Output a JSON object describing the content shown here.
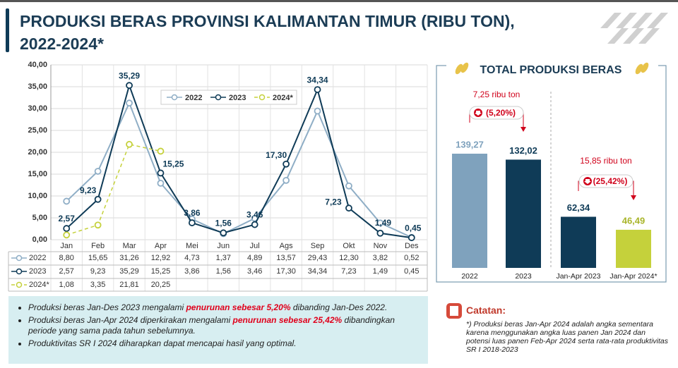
{
  "header": {
    "title_lines": [
      "PRODUKSI BERAS PROVINSI KALIMANTAN TIMUR (RIBU TON),",
      "2022-2024*"
    ]
  },
  "chart_data": [
    {
      "type": "line",
      "categories": [
        "Jan",
        "Feb",
        "Mar",
        "Apr",
        "Mei",
        "Jun",
        "Jul",
        "Ags",
        "Sep",
        "Okt",
        "Nov",
        "Des"
      ],
      "series": [
        {
          "name": "2022",
          "color": "#8faec6",
          "dashed": false,
          "values": [
            8.8,
            15.65,
            31.26,
            12.92,
            4.73,
            1.37,
            4.89,
            13.57,
            29.43,
            12.3,
            3.82,
            0.52
          ],
          "value_labels": [
            "8,80",
            "15,65",
            "31,26",
            "12,92",
            "4,73",
            "1,37",
            "4,89",
            "13,57",
            "29,43",
            "12,30",
            "3,82",
            "0,52"
          ]
        },
        {
          "name": "2023",
          "color": "#0f3b57",
          "dashed": false,
          "labels_on_chart": true,
          "values": [
            2.57,
            9.23,
            35.29,
            15.25,
            3.86,
            1.56,
            3.46,
            17.3,
            34.34,
            7.23,
            1.49,
            0.45
          ],
          "value_labels": [
            "2,57",
            "9,23",
            "35,29",
            "15,25",
            "3,86",
            "1,56",
            "3,46",
            "17,30",
            "34,34",
            "7,23",
            "1,49",
            "0,45"
          ]
        },
        {
          "name": "2024*",
          "color": "#c5d13b",
          "dashed": true,
          "values": [
            1.08,
            3.35,
            21.81,
            20.25,
            null,
            null,
            null,
            null,
            null,
            null,
            null,
            null
          ],
          "value_labels": [
            "1,08",
            "3,35",
            "21,81",
            "20,25",
            null,
            null,
            null,
            null,
            null,
            null,
            null,
            null
          ]
        }
      ],
      "ylim": [
        0,
        40
      ],
      "yticks": [
        {
          "value": 0,
          "label": "0,00"
        },
        {
          "value": 5,
          "label": "5,00"
        },
        {
          "value": 10,
          "label": "10,00"
        },
        {
          "value": 15,
          "label": "15,00"
        },
        {
          "value": 20,
          "label": "20,00"
        },
        {
          "value": 25,
          "label": "25,00"
        },
        {
          "value": 30,
          "label": "30,00"
        },
        {
          "value": 35,
          "label": "35,00"
        },
        {
          "value": 40,
          "label": "40,00"
        }
      ],
      "grid": true,
      "legend": "top"
    },
    {
      "type": "bar",
      "title": "TOTAL PRODUKSI BERAS",
      "categories": [
        "2022",
        "2023",
        "Jan-Apr 2023",
        "Jan-Apr 2024*"
      ],
      "values": [
        139.27,
        132.02,
        62.34,
        46.49
      ],
      "value_labels": [
        "139,27",
        "132,02",
        "62,34",
        "46,49"
      ],
      "colors": [
        "#7fa2bd",
        "#0f3b57",
        "#0f3b57",
        "#c5d13b"
      ],
      "label_colors": [
        "#7fa2bd",
        "#0f3b57",
        "#0f3b57",
        "#a9b52a"
      ],
      "annotations": [
        {
          "text": "7,25 ribu ton",
          "change": "(5,20%)"
        },
        {
          "text": "15,85 ribu ton",
          "change": "(25,42%)"
        }
      ]
    }
  ],
  "summary": {
    "bullets": [
      {
        "before": "Produksi beras Jan-Des 2023 mengalami ",
        "highlight": "penurunan sebesar 5,20%",
        "after": " dibanding Jan-Des 2022."
      },
      {
        "before": "Produksi beras Jan-Apr 2024 diperkirakan mengalami ",
        "highlight": "penurunan sebesar 25,42%",
        "after": " dibandingkan periode yang sama pada tahun sebelumnya."
      },
      {
        "before": "Produktivitas SR I 2024 diharapkan dapat mencapai hasil yang optimal."
      }
    ]
  },
  "note": {
    "title": "Catatan:",
    "lines": [
      "*) Produksi beras Jan-Apr 2024 adalah angka sementara",
      "karena menggunakan angka luas panen Jan 2024 dan",
      "potensi luas panen Feb-Apr 2024 serta rata-rata produktivitas",
      "SR I 2018-2023"
    ]
  }
}
